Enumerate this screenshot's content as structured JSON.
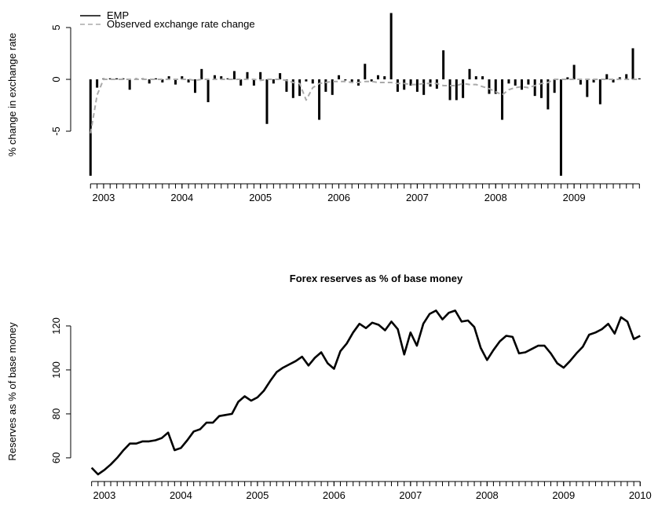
{
  "chart_data": [
    {
      "type": "bar",
      "ylabel": "% change in exchange rate",
      "legend": "top-left",
      "x": [
        2002.833,
        2002.917,
        2003.0,
        2003.083,
        2003.167,
        2003.25,
        2003.333,
        2003.417,
        2003.5,
        2003.583,
        2003.667,
        2003.75,
        2003.833,
        2003.917,
        2004.0,
        2004.083,
        2004.167,
        2004.25,
        2004.333,
        2004.417,
        2004.5,
        2004.583,
        2004.667,
        2004.75,
        2004.833,
        2004.917,
        2005.0,
        2005.083,
        2005.167,
        2005.25,
        2005.333,
        2005.417,
        2005.5,
        2005.583,
        2005.667,
        2005.75,
        2005.833,
        2005.917,
        2006.0,
        2006.083,
        2006.167,
        2006.25,
        2006.333,
        2006.417,
        2006.5,
        2006.583,
        2006.667,
        2006.75,
        2006.833,
        2006.917,
        2007.0,
        2007.083,
        2007.167,
        2007.25,
        2007.333,
        2007.417,
        2007.5,
        2007.583,
        2007.667,
        2007.75,
        2007.833,
        2007.917,
        2008.0,
        2008.083,
        2008.167,
        2008.25,
        2008.333,
        2008.417,
        2008.5,
        2008.583,
        2008.667,
        2008.75,
        2008.833,
        2008.917,
        2009.0,
        2009.083,
        2009.167,
        2009.25,
        2009.333,
        2009.417,
        2009.5,
        2009.583,
        2009.667,
        2009.75,
        2009.833
      ],
      "series": [
        {
          "name": "EMP",
          "type": "bar",
          "color": "#000000",
          "values": [
            -9.3,
            -0.8,
            0.1,
            0.1,
            0.1,
            0.1,
            -1.0,
            0.1,
            0.1,
            -0.4,
            0.1,
            -0.3,
            0.3,
            -0.5,
            0.3,
            -0.3,
            -1.3,
            1.0,
            -2.2,
            0.4,
            0.3,
            0.1,
            0.8,
            -0.6,
            0.7,
            -0.6,
            0.7,
            -4.3,
            -0.4,
            0.6,
            -1.2,
            -1.8,
            -1.6,
            -0.2,
            -0.4,
            -3.9,
            -1.2,
            -1.5,
            0.4,
            -0.1,
            -0.3,
            -0.6,
            1.5,
            -0.2,
            0.4,
            0.3,
            6.4,
            -1.2,
            -1.0,
            -0.6,
            -1.2,
            -1.5,
            -0.7,
            -0.9,
            2.8,
            -2.0,
            -2.0,
            -1.8,
            1.0,
            0.3,
            0.3,
            -1.4,
            -1.4,
            -3.9,
            -0.4,
            -0.6,
            -1.0,
            -0.5,
            -1.6,
            -1.8,
            -2.9,
            -1.3,
            -9.3,
            0.2,
            1.4,
            -0.5,
            -1.7,
            -0.3,
            -2.4,
            0.5,
            -0.3,
            0.2,
            0.5,
            3.0,
            0.1
          ]
        },
        {
          "name": "Observed exchange rate change",
          "type": "line",
          "linestyle": "dashed",
          "color": "#aaaaaa",
          "values": [
            -5.2,
            -1.5,
            0,
            0,
            0,
            0,
            0,
            0,
            0,
            0,
            0,
            0,
            0,
            0,
            0,
            0,
            -0.1,
            0,
            0,
            0,
            0,
            0,
            0,
            0,
            0,
            0,
            -0.1,
            0,
            0,
            0,
            -0.1,
            -0.3,
            -0.4,
            -2.0,
            -0.8,
            -0.4,
            -0.3,
            -0.2,
            -0.2,
            -0.2,
            -0.3,
            -0.3,
            -0.2,
            -0.2,
            -0.3,
            -0.3,
            -0.3,
            -0.4,
            -0.4,
            -0.5,
            -0.5,
            -0.4,
            -0.4,
            -0.4,
            -0.6,
            -0.6,
            -0.6,
            -0.4,
            -0.5,
            -0.5,
            -0.7,
            -0.9,
            -1.2,
            -1.5,
            -1.0,
            -0.8,
            -0.7,
            -0.8,
            -0.6,
            -0.4,
            -0.3,
            0,
            0,
            0,
            0,
            0,
            0,
            0,
            0,
            0,
            0,
            0,
            0,
            0,
            0
          ]
        }
      ],
      "xlim": [
        2002.6,
        2009.95
      ],
      "xticks": [
        2003,
        2004,
        2005,
        2006,
        2007,
        2008,
        2009
      ],
      "ylim": [
        -10,
        7.05
      ],
      "yticks": [
        -5,
        0,
        5
      ]
    },
    {
      "type": "line",
      "title": "Forex reserves as % of base money",
      "ylabel": "Reserves as % of base money",
      "color": "#000000",
      "x": [
        2002.833,
        2002.917,
        2003.0,
        2003.083,
        2003.167,
        2003.25,
        2003.333,
        2003.417,
        2003.5,
        2003.583,
        2003.667,
        2003.75,
        2003.833,
        2003.917,
        2004.0,
        2004.083,
        2004.167,
        2004.25,
        2004.333,
        2004.417,
        2004.5,
        2004.583,
        2004.667,
        2004.75,
        2004.833,
        2004.917,
        2005.0,
        2005.083,
        2005.167,
        2005.25,
        2005.333,
        2005.417,
        2005.5,
        2005.583,
        2005.667,
        2005.75,
        2005.833,
        2005.917,
        2006.0,
        2006.083,
        2006.167,
        2006.25,
        2006.333,
        2006.417,
        2006.5,
        2006.583,
        2006.667,
        2006.75,
        2006.833,
        2006.917,
        2007.0,
        2007.083,
        2007.167,
        2007.25,
        2007.333,
        2007.417,
        2007.5,
        2007.583,
        2007.667,
        2007.75,
        2007.833,
        2007.917,
        2008.0,
        2008.083,
        2008.167,
        2008.25,
        2008.333,
        2008.417,
        2008.5,
        2008.583,
        2008.667,
        2008.75,
        2008.833,
        2008.917,
        2009.0,
        2009.083,
        2009.167,
        2009.25,
        2009.333,
        2009.417,
        2009.5,
        2009.583,
        2009.667,
        2009.75,
        2009.833,
        2009.917,
        2010.0
      ],
      "values": [
        55.5,
        52.5,
        54.5,
        57,
        60,
        63.5,
        66.5,
        66.5,
        67.5,
        67.5,
        68,
        69,
        71.5,
        63.5,
        64.5,
        68,
        72,
        73,
        76,
        76,
        79,
        79.5,
        80,
        85.5,
        88,
        86,
        87.5,
        90.5,
        95,
        99,
        101,
        102.5,
        104,
        106,
        102,
        105.5,
        108,
        103,
        100.5,
        108.5,
        112,
        117,
        121,
        119,
        121.5,
        120.5,
        118,
        122,
        118.5,
        107,
        117,
        111,
        121,
        125.5,
        127,
        123,
        126,
        127,
        122,
        122.5,
        119.5,
        110,
        104.5,
        109,
        113,
        115.5,
        115,
        107.5,
        108,
        109.5,
        111,
        111,
        107.5,
        103,
        101,
        104,
        107.5,
        110.5,
        116,
        117,
        118.5,
        121,
        116.5,
        124,
        122,
        114,
        115.5
      ],
      "xlim": [
        2002.58,
        2010.11
      ],
      "xticks": [
        2003,
        2004,
        2005,
        2006,
        2007,
        2008,
        2009,
        2010
      ],
      "ylim": [
        49.6,
        130.7
      ],
      "yticks": [
        60,
        80,
        100,
        120
      ]
    }
  ]
}
